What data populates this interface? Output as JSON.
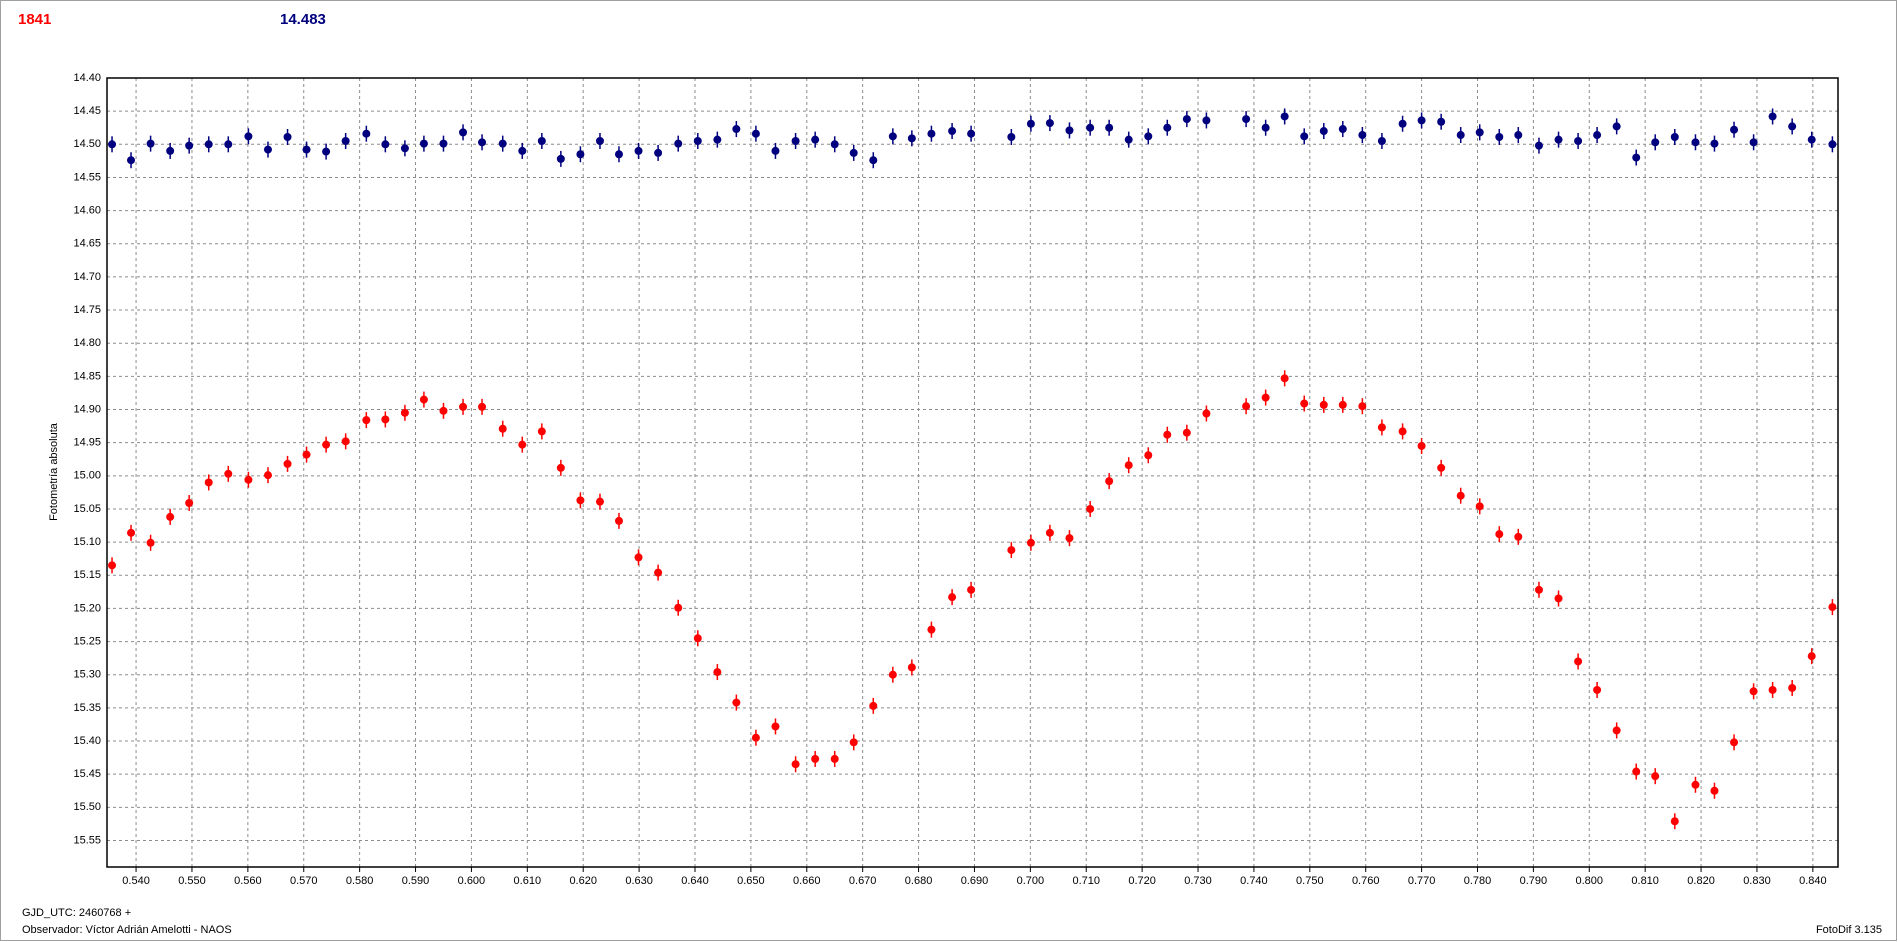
{
  "chart_data": {
    "type": "scatter",
    "annotations": [
      "1841",
      "14.483"
    ],
    "annotation_colors": [
      "#ff0000",
      "#00007f"
    ],
    "ylabel": "Fotometría absoluta",
    "footer": [
      "GJD_UTC: 2460768 +",
      "Observador: Víctor Adrián Amelotti - NAOS"
    ],
    "software": "FotoDif 3.135",
    "y_inverted": true,
    "grid": true,
    "xlim": [
      0.5348,
      0.8445
    ],
    "ylim": [
      14.4,
      15.59
    ],
    "yticks": [
      {
        "value": 14.4,
        "label": "14.40"
      },
      {
        "value": 14.45,
        "label": "14.45"
      },
      {
        "value": 14.5,
        "label": "14.50"
      },
      {
        "value": 14.55,
        "label": "14.55"
      },
      {
        "value": 14.6,
        "label": "14.60"
      },
      {
        "value": 14.65,
        "label": "14.65"
      },
      {
        "value": 14.7,
        "label": "14.70"
      },
      {
        "value": 14.75,
        "label": "14.75"
      },
      {
        "value": 14.8,
        "label": "14.80"
      },
      {
        "value": 14.85,
        "label": "14.85"
      },
      {
        "value": 14.9,
        "label": "14.90"
      },
      {
        "value": 14.95,
        "label": "14.95"
      },
      {
        "value": 15.0,
        "label": "15.00"
      },
      {
        "value": 15.05,
        "label": "15.05"
      },
      {
        "value": 15.1,
        "label": "15.10"
      },
      {
        "value": 15.15,
        "label": "15.15"
      },
      {
        "value": 15.2,
        "label": "15.20"
      },
      {
        "value": 15.25,
        "label": "15.25"
      },
      {
        "value": 15.3,
        "label": "15.30"
      },
      {
        "value": 15.35,
        "label": "15.35"
      },
      {
        "value": 15.4,
        "label": "15.40"
      },
      {
        "value": 15.45,
        "label": "15.45"
      },
      {
        "value": 15.5,
        "label": "15.50"
      },
      {
        "value": 15.55,
        "label": "15.55"
      }
    ],
    "xticks": [
      {
        "value": 0.54,
        "label": "0.540"
      },
      {
        "value": 0.55,
        "label": "0.550"
      },
      {
        "value": 0.56,
        "label": "0.560"
      },
      {
        "value": 0.57,
        "label": "0.570"
      },
      {
        "value": 0.58,
        "label": "0.580"
      },
      {
        "value": 0.59,
        "label": "0.590"
      },
      {
        "value": 0.6,
        "label": "0.600"
      },
      {
        "value": 0.61,
        "label": "0.610"
      },
      {
        "value": 0.62,
        "label": "0.620"
      },
      {
        "value": 0.63,
        "label": "0.630"
      },
      {
        "value": 0.64,
        "label": "0.640"
      },
      {
        "value": 0.65,
        "label": "0.650"
      },
      {
        "value": 0.66,
        "label": "0.660"
      },
      {
        "value": 0.67,
        "label": "0.670"
      },
      {
        "value": 0.68,
        "label": "0.680"
      },
      {
        "value": 0.69,
        "label": "0.690"
      },
      {
        "value": 0.7,
        "label": "0.700"
      },
      {
        "value": 0.71,
        "label": "0.710"
      },
      {
        "value": 0.72,
        "label": "0.720"
      },
      {
        "value": 0.73,
        "label": "0.730"
      },
      {
        "value": 0.74,
        "label": "0.740"
      },
      {
        "value": 0.75,
        "label": "0.750"
      },
      {
        "value": 0.76,
        "label": "0.760"
      },
      {
        "value": 0.77,
        "label": "0.770"
      },
      {
        "value": 0.78,
        "label": "0.780"
      },
      {
        "value": 0.79,
        "label": "0.790"
      },
      {
        "value": 0.8,
        "label": "0.800"
      },
      {
        "value": 0.81,
        "label": "0.810"
      },
      {
        "value": 0.82,
        "label": "0.820"
      },
      {
        "value": 0.83,
        "label": "0.830"
      },
      {
        "value": 0.84,
        "label": "0.840"
      }
    ],
    "x": [
      0.5357,
      0.5391,
      0.5426,
      0.5461,
      0.5495,
      0.553,
      0.5565,
      0.5601,
      0.5636,
      0.5671,
      0.5705,
      0.574,
      0.5775,
      0.5812,
      0.5846,
      0.5881,
      0.5915,
      0.595,
      0.5985,
      0.6019,
      0.6056,
      0.6091,
      0.6126,
      0.616,
      0.6195,
      0.623,
      0.6264,
      0.6299,
      0.6334,
      0.637,
      0.6405,
      0.644,
      0.6474,
      0.6509,
      0.6544,
      0.658,
      0.6615,
      0.665,
      0.6684,
      0.6719,
      0.6754,
      0.6788,
      0.6823,
      0.686,
      0.6894,
      0.6966,
      0.7001,
      0.7035,
      0.707,
      0.7107,
      0.7141,
      0.7176,
      0.7211,
      0.7245,
      0.728,
      0.7315,
      0.7386,
      0.7421,
      0.7455,
      0.749,
      0.7525,
      0.7559,
      0.7594,
      0.7629,
      0.7666,
      0.77,
      0.7735,
      0.777,
      0.7804,
      0.7839,
      0.7873,
      0.791,
      0.7945,
      0.798,
      0.8014,
      0.8049,
      0.8084,
      0.8118,
      0.8153,
      0.819,
      0.8224,
      0.8259,
      0.8294,
      0.8328,
      0.8363,
      0.8398,
      0.8435
    ],
    "series": [
      {
        "color": "#ff0000",
        "values": [
          15.135,
          15.086,
          15.101,
          15.062,
          15.041,
          15.01,
          14.997,
          15.006,
          14.999,
          14.982,
          14.968,
          14.953,
          14.948,
          14.916,
          14.915,
          14.905,
          14.885,
          14.902,
          14.896,
          14.896,
          14.929,
          14.953,
          14.933,
          14.988,
          15.037,
          15.039,
          15.068,
          15.123,
          15.146,
          15.199,
          15.245,
          15.296,
          15.342,
          15.395,
          15.378,
          15.435,
          15.427,
          15.427,
          15.402,
          15.347,
          15.3,
          15.289,
          15.232,
          15.183,
          15.172,
          15.112,
          15.101,
          15.086,
          15.094,
          15.05,
          15.008,
          14.984,
          14.969,
          14.938,
          14.935,
          14.906,
          14.895,
          14.882,
          14.853,
          14.891,
          14.893,
          14.893,
          14.895,
          14.927,
          14.933,
          14.955,
          14.988,
          15.03,
          15.046,
          15.088,
          15.092,
          15.172,
          15.185,
          15.28,
          15.323,
          15.384,
          15.446,
          15.453,
          15.521,
          15.466,
          15.475,
          15.402,
          15.325,
          15.323,
          15.32,
          15.272,
          15.198
        ]
      },
      {
        "color": "#00007f",
        "values": [
          14.5,
          14.524,
          14.499,
          14.51,
          14.502,
          14.5,
          14.5,
          14.488,
          14.508,
          14.489,
          14.508,
          14.511,
          14.495,
          14.484,
          14.5,
          14.506,
          14.499,
          14.499,
          14.482,
          14.497,
          14.499,
          14.51,
          14.495,
          14.522,
          14.515,
          14.495,
          14.515,
          14.51,
          14.513,
          14.499,
          14.495,
          14.493,
          14.477,
          14.484,
          14.51,
          14.495,
          14.493,
          14.5,
          14.513,
          14.524,
          14.488,
          14.491,
          14.484,
          14.48,
          14.484,
          14.489,
          14.469,
          14.468,
          14.479,
          14.475,
          14.475,
          14.493,
          14.488,
          14.475,
          14.462,
          14.464,
          14.462,
          14.475,
          14.458,
          14.488,
          14.48,
          14.477,
          14.486,
          14.495,
          14.469,
          14.464,
          14.466,
          14.486,
          14.482,
          14.489,
          14.486,
          14.502,
          14.493,
          14.495,
          14.486,
          14.473,
          14.52,
          14.497,
          14.489,
          14.497,
          14.499,
          14.478,
          14.497,
          14.458,
          14.473,
          14.493,
          14.5
        ]
      }
    ]
  }
}
